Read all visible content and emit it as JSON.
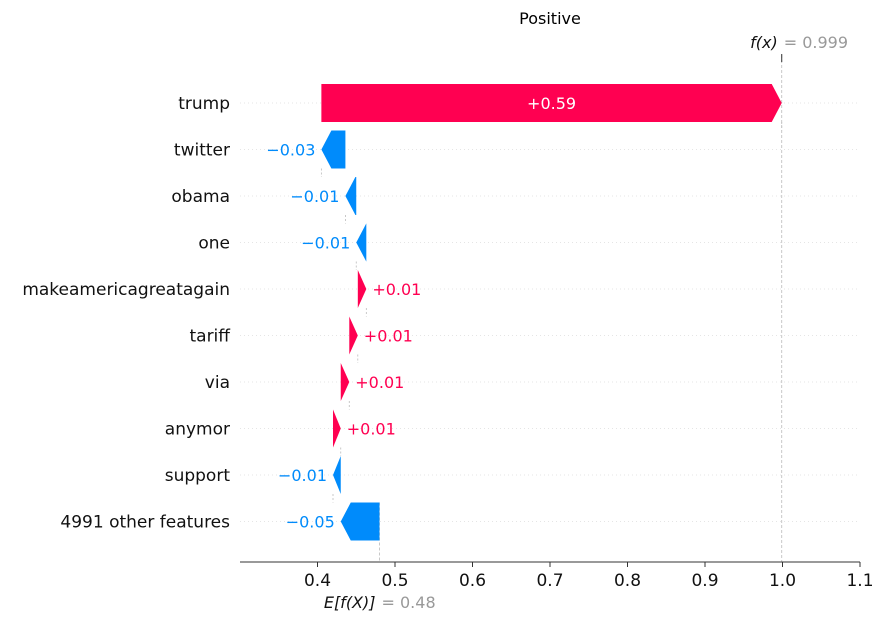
{
  "chart_data": {
    "type": "waterfall",
    "title": "Positive",
    "base_value": 0.48,
    "base_label_symbol": "E[f(X)]",
    "base_label_value": "= 0.48",
    "output_value": 0.999,
    "output_label_symbol": "f(x)",
    "output_label_value": "= 0.999",
    "xlim": [
      0.3,
      1.1
    ],
    "xticks": [
      {
        "v": 0.4,
        "label": "0.4"
      },
      {
        "v": 0.5,
        "label": "0.5"
      },
      {
        "v": 0.6,
        "label": "0.6"
      },
      {
        "v": 0.7,
        "label": "0.7"
      },
      {
        "v": 0.8,
        "label": "0.8"
      },
      {
        "v": 0.9,
        "label": "0.9"
      },
      {
        "v": 1.0,
        "label": "1.0"
      },
      {
        "v": 1.1,
        "label": "1.1"
      }
    ],
    "features": [
      {
        "name": "trump",
        "start": 0.405,
        "end": 0.999,
        "label": "+0.59"
      },
      {
        "name": "twitter",
        "start": 0.436,
        "end": 0.405,
        "label": "−0.03"
      },
      {
        "name": "obama",
        "start": 0.45,
        "end": 0.436,
        "label": "−0.01"
      },
      {
        "name": "one",
        "start": 0.463,
        "end": 0.45,
        "label": "−0.01"
      },
      {
        "name": "makeamericagreatagain",
        "start": 0.452,
        "end": 0.463,
        "label": "+0.01"
      },
      {
        "name": "tariff",
        "start": 0.441,
        "end": 0.452,
        "label": "+0.01"
      },
      {
        "name": "via",
        "start": 0.43,
        "end": 0.441,
        "label": "+0.01"
      },
      {
        "name": "anymor",
        "start": 0.42,
        "end": 0.43,
        "label": "+0.01"
      },
      {
        "name": "support",
        "start": 0.43,
        "end": 0.42,
        "label": "−0.01"
      },
      {
        "name": "4991 other features",
        "start": 0.48,
        "end": 0.43,
        "label": "−0.05"
      }
    ],
    "colors": {
      "positive": "#ff0051",
      "negative": "#008bfb",
      "note": "#999999"
    }
  }
}
